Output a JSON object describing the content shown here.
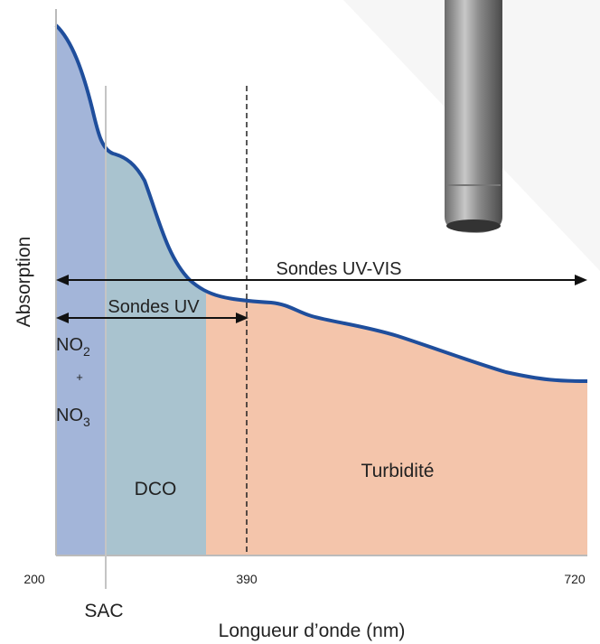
{
  "axes": {
    "y_label": "Absorption",
    "x_label": "Longueur d’onde (nm)",
    "x_ticks": [
      200,
      390,
      720
    ],
    "marker": "SAC"
  },
  "arrows": {
    "uv_vis": "Sondes UV-VIS",
    "uv": "Sondes UV"
  },
  "regions": {
    "nitrates": {
      "top": {
        "base": "NO",
        "sub": "2"
      },
      "plus": "+",
      "bottom": {
        "base": "NO",
        "sub": "3"
      }
    },
    "dco": "DCO",
    "turbidity": "Turbidité"
  }
}
